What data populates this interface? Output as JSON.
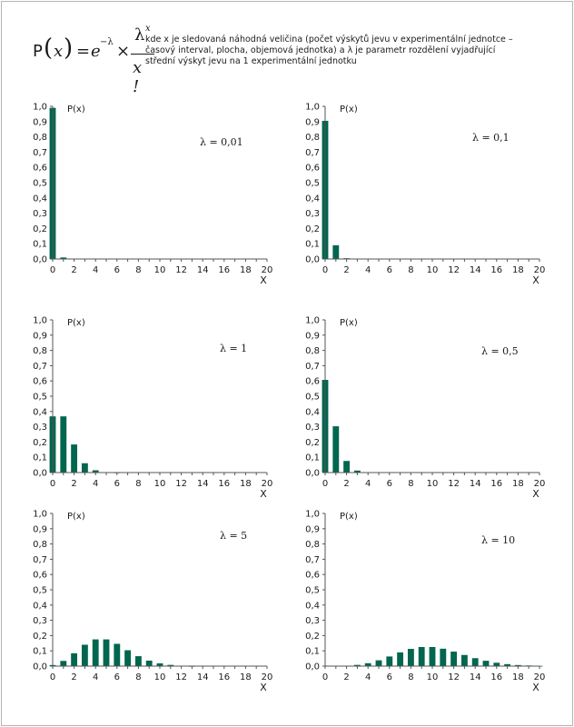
{
  "formula": {
    "p": "P",
    "x": "x",
    "eq": "=",
    "e": "e",
    "exp": "−λ",
    "times": "×",
    "lambda": "λ",
    "lambda_sup": "x",
    "denominator": "x !"
  },
  "description": [
    "kde x je sledovaná náhodná veličina (počet výskytů jevu v experimentální jednotce –",
    "časový interval, plocha, objemová jednotka) a λ je parametr rozdělení vyjadřující",
    "střední výskyt jevu na 1 experimentální jednotku"
  ],
  "colors": {
    "bar": "#00664f",
    "axis": "#555555",
    "frame": "#b5b5b5"
  },
  "chart_data": [
    {
      "type": "bar",
      "ylabel": "P(x)",
      "xlabel": "X",
      "annotation": "λ = 0,01",
      "ylim": [
        0,
        1
      ],
      "xlim": [
        0,
        20
      ],
      "yticks": [
        "0,0",
        "0,1",
        "0,2",
        "0,3",
        "0,4",
        "0,5",
        "0,6",
        "0,7",
        "0,8",
        "0,9",
        "1,0"
      ],
      "xticks": [
        "0",
        "2",
        "4",
        "6",
        "8",
        "10",
        "12",
        "14",
        "16",
        "18",
        "20"
      ],
      "x": [
        0,
        1,
        2,
        3,
        4,
        5,
        6,
        7,
        8,
        9,
        10,
        11,
        12,
        13,
        14,
        15,
        16,
        17,
        18,
        19,
        20
      ],
      "values": [
        0.99,
        0.01,
        0,
        0,
        0,
        0,
        0,
        0,
        0,
        0,
        0,
        0,
        0,
        0,
        0,
        0,
        0,
        0,
        0,
        0,
        0
      ]
    },
    {
      "type": "bar",
      "ylabel": "P(x)",
      "xlabel": "X",
      "annotation": "λ = 0,1",
      "ylim": [
        0,
        1
      ],
      "xlim": [
        0,
        20
      ],
      "yticks": [
        "0,0",
        "0,1",
        "0,2",
        "0,3",
        "0,4",
        "0,5",
        "0,6",
        "0,7",
        "0,8",
        "0,9",
        "1,0"
      ],
      "xticks": [
        "0",
        "2",
        "4",
        "6",
        "8",
        "10",
        "12",
        "14",
        "16",
        "18",
        "20"
      ],
      "x": [
        0,
        1,
        2,
        3,
        4,
        5,
        6,
        7,
        8,
        9,
        10,
        11,
        12,
        13,
        14,
        15,
        16,
        17,
        18,
        19,
        20
      ],
      "values": [
        0.905,
        0.09,
        0.005,
        0,
        0,
        0,
        0,
        0,
        0,
        0,
        0,
        0,
        0,
        0,
        0,
        0,
        0,
        0,
        0,
        0,
        0
      ]
    },
    {
      "type": "bar",
      "ylabel": "P(x)",
      "xlabel": "X",
      "annotation": "λ = 1",
      "ylim": [
        0,
        1
      ],
      "xlim": [
        0,
        20
      ],
      "yticks": [
        "0,0",
        "0,1",
        "0,2",
        "0,3",
        "0,4",
        "0,5",
        "0,6",
        "0,7",
        "0,8",
        "0,9",
        "1,0"
      ],
      "xticks": [
        "0",
        "2",
        "4",
        "6",
        "8",
        "10",
        "12",
        "14",
        "16",
        "18",
        "20"
      ],
      "x": [
        0,
        1,
        2,
        3,
        4,
        5,
        6,
        7,
        8,
        9,
        10,
        11,
        12,
        13,
        14,
        15,
        16,
        17,
        18,
        19,
        20
      ],
      "values": [
        0.368,
        0.368,
        0.184,
        0.061,
        0.015,
        0.003,
        0.001,
        0,
        0,
        0,
        0,
        0,
        0,
        0,
        0,
        0,
        0,
        0,
        0,
        0,
        0
      ]
    },
    {
      "type": "bar",
      "ylabel": "P(x)",
      "xlabel": "X",
      "annotation": "λ = 0,5",
      "ylim": [
        0,
        1
      ],
      "xlim": [
        0,
        20
      ],
      "yticks": [
        "0,0",
        "0,1",
        "0,2",
        "0,3",
        "0,4",
        "0,5",
        "0,6",
        "0,7",
        "0,8",
        "0,9",
        "1,0"
      ],
      "xticks": [
        "0",
        "2",
        "4",
        "6",
        "8",
        "10",
        "12",
        "14",
        "16",
        "18",
        "20"
      ],
      "x": [
        0,
        1,
        2,
        3,
        4,
        5,
        6,
        7,
        8,
        9,
        10,
        11,
        12,
        13,
        14,
        15,
        16,
        17,
        18,
        19,
        20
      ],
      "values": [
        0.607,
        0.303,
        0.076,
        0.013,
        0.002,
        0,
        0,
        0,
        0,
        0,
        0,
        0,
        0,
        0,
        0,
        0,
        0,
        0,
        0,
        0,
        0
      ]
    },
    {
      "type": "bar",
      "ylabel": "P(x)",
      "xlabel": "X",
      "annotation": "λ = 5",
      "ylim": [
        0,
        1
      ],
      "xlim": [
        0,
        20
      ],
      "yticks": [
        "0,0",
        "0,1",
        "0,2",
        "0,3",
        "0,4",
        "0,5",
        "0,6",
        "0,7",
        "0,8",
        "0,9",
        "1,0"
      ],
      "xticks": [
        "0",
        "2",
        "4",
        "6",
        "8",
        "10",
        "12",
        "14",
        "16",
        "18",
        "20"
      ],
      "x": [
        0,
        1,
        2,
        3,
        4,
        5,
        6,
        7,
        8,
        9,
        10,
        11,
        12,
        13,
        14,
        15,
        16,
        17,
        18,
        19,
        20
      ],
      "values": [
        0.007,
        0.034,
        0.084,
        0.14,
        0.175,
        0.175,
        0.146,
        0.104,
        0.065,
        0.036,
        0.018,
        0.008,
        0.003,
        0.001,
        0,
        0,
        0,
        0,
        0,
        0,
        0
      ]
    },
    {
      "type": "bar",
      "ylabel": "P(x)",
      "xlabel": "X",
      "annotation": "λ = 10",
      "ylim": [
        0,
        1
      ],
      "xlim": [
        0,
        20
      ],
      "yticks": [
        "0,0",
        "0,1",
        "0,2",
        "0,3",
        "0,4",
        "0,5",
        "0,6",
        "0,7",
        "0,8",
        "0,9",
        "1,0"
      ],
      "xticks": [
        "0",
        "2",
        "4",
        "6",
        "8",
        "10",
        "12",
        "14",
        "16",
        "18",
        "20"
      ],
      "x": [
        0,
        1,
        2,
        3,
        4,
        5,
        6,
        7,
        8,
        9,
        10,
        11,
        12,
        13,
        14,
        15,
        16,
        17,
        18,
        19,
        20
      ],
      "values": [
        0,
        0,
        0.002,
        0.008,
        0.019,
        0.038,
        0.063,
        0.09,
        0.113,
        0.125,
        0.125,
        0.114,
        0.095,
        0.073,
        0.052,
        0.035,
        0.022,
        0.013,
        0.007,
        0.004,
        0.002
      ]
    }
  ]
}
